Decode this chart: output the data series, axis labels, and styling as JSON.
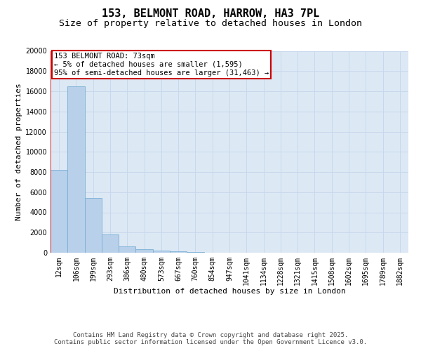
{
  "title": "153, BELMONT ROAD, HARROW, HA3 7PL",
  "subtitle": "Size of property relative to detached houses in London",
  "xlabel": "Distribution of detached houses by size in London",
  "ylabel": "Number of detached properties",
  "categories": [
    "12sqm",
    "106sqm",
    "199sqm",
    "293sqm",
    "386sqm",
    "480sqm",
    "573sqm",
    "667sqm",
    "760sqm",
    "854sqm",
    "947sqm",
    "1041sqm",
    "1134sqm",
    "1228sqm",
    "1321sqm",
    "1415sqm",
    "1508sqm",
    "1602sqm",
    "1695sqm",
    "1789sqm",
    "1882sqm"
  ],
  "bar_heights": [
    8200,
    16500,
    5400,
    1800,
    600,
    350,
    220,
    130,
    70,
    0,
    0,
    0,
    0,
    0,
    0,
    0,
    0,
    0,
    0,
    0,
    0
  ],
  "bar_color": "#b8d0ea",
  "bar_edge_color": "#7aafd4",
  "grid_color": "#c8d8ec",
  "background_color": "#dce8f4",
  "ylim": [
    0,
    20000
  ],
  "yticks": [
    0,
    2000,
    4000,
    6000,
    8000,
    10000,
    12000,
    14000,
    16000,
    18000,
    20000
  ],
  "vline_color": "#cc0000",
  "annotation_text": "153 BELMONT ROAD: 73sqm\n← 5% of detached houses are smaller (1,595)\n95% of semi-detached houses are larger (31,463) →",
  "annotation_box_color": "#cc0000",
  "footer_line1": "Contains HM Land Registry data © Crown copyright and database right 2025.",
  "footer_line2": "Contains public sector information licensed under the Open Government Licence v3.0.",
  "title_fontsize": 11,
  "subtitle_fontsize": 9.5,
  "axis_label_fontsize": 8,
  "tick_fontsize": 7,
  "annotation_fontsize": 7.5,
  "footer_fontsize": 6.5
}
